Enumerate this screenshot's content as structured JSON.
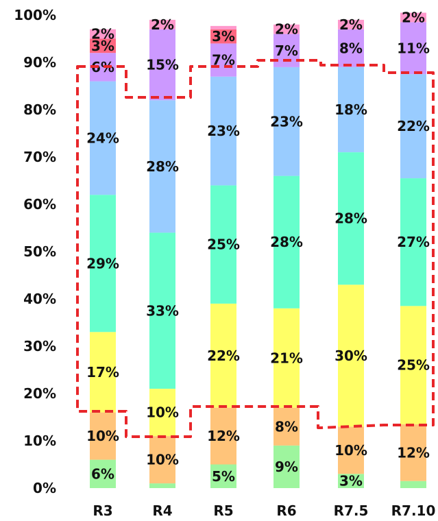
{
  "chart_data": {
    "type": "bar",
    "stacked": true,
    "categories": [
      "R3",
      "R4",
      "R5",
      "R6",
      "R7.5",
      "R7.10"
    ],
    "ylim": [
      0,
      100
    ],
    "yticks": [
      "0%",
      "10%",
      "20%",
      "30%",
      "40%",
      "50%",
      "60%",
      "70%",
      "80%",
      "90%",
      "100%"
    ],
    "series": [
      {
        "values": [
          6,
          1,
          5,
          9,
          3,
          1.5
        ],
        "labels": [
          "6%",
          "",
          "5%",
          "9%",
          "3%",
          ""
        ],
        "color": "#9ef59e"
      },
      {
        "values": [
          10,
          10,
          12,
          8,
          10,
          12
        ],
        "labels": [
          "10%",
          "10%",
          "12%",
          "8%",
          "10%",
          "12%"
        ],
        "color": "#ffc47a"
      },
      {
        "values": [
          17,
          10,
          22,
          21,
          30,
          25
        ],
        "labels": [
          "17%",
          "10%",
          "22%",
          "21%",
          "30%",
          "25%"
        ],
        "color": "#ffff66"
      },
      {
        "values": [
          29,
          33,
          25,
          28,
          28,
          27
        ],
        "labels": [
          "29%",
          "33%",
          "25%",
          "28%",
          "28%",
          "27%"
        ],
        "color": "#66ffcc"
      },
      {
        "values": [
          24,
          28,
          23,
          23,
          18,
          22
        ],
        "labels": [
          "24%",
          "28%",
          "23%",
          "23%",
          "18%",
          "22%"
        ],
        "color": "#99ccff"
      },
      {
        "values": [
          6,
          15,
          7,
          7,
          8,
          11
        ],
        "labels": [
          "6%",
          "15%",
          "7%",
          "7%",
          "8%",
          "11%"
        ],
        "color": "#cc99ff"
      },
      {
        "values": [
          3,
          0,
          3,
          0,
          0,
          0
        ],
        "labels": [
          "3%",
          "",
          "3%",
          "",
          "",
          ""
        ],
        "color": "#ff6680"
      },
      {
        "values": [
          2,
          2,
          0.7,
          2,
          2,
          2
        ],
        "labels": [
          "2%",
          "2%",
          "",
          "2%",
          "2%",
          "2%"
        ],
        "color": "#ff99cc"
      }
    ],
    "highlight_region": "red dashed outline around the 10%–25% band through the 18%–28% band (middle segments)"
  }
}
